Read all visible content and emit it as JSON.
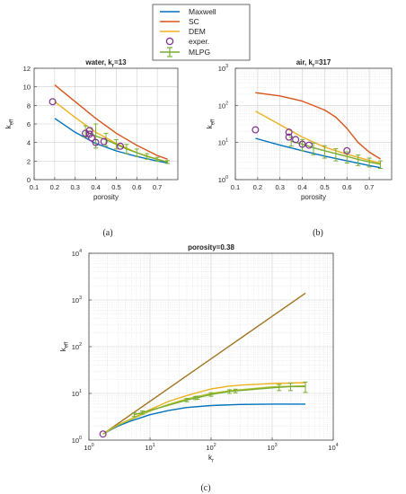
{
  "legend": {
    "entries": [
      {
        "name": "Maxwell",
        "color": "#0072BD",
        "kind": "line"
      },
      {
        "name": "SC",
        "color": "#D95319",
        "kind": "line"
      },
      {
        "name": "DEM",
        "color": "#EDB120",
        "kind": "line"
      },
      {
        "name": "exper.",
        "color": "#7E2F8E",
        "kind": "marker"
      },
      {
        "name": "MLPG",
        "color": "#77AC30",
        "kind": "errorbar"
      }
    ]
  },
  "captions": {
    "a": "(a)",
    "b": "(b)",
    "c": "(c)"
  },
  "chart_data": [
    {
      "id": "a",
      "type": "line",
      "title": "water,   k",
      "title_sub": "r",
      "title_after": "=13",
      "xlabel": "porosity",
      "ylabel": "k",
      "ylabel_sub": "eff",
      "xlim": [
        0.1,
        0.8
      ],
      "ylim": [
        0,
        12
      ],
      "yscale": "linear",
      "xticks": [
        0.1,
        0.2,
        0.3,
        0.4,
        0.5,
        0.6,
        0.7
      ],
      "xtick_labels": [
        "0.1",
        "0.2",
        "0.3",
        "0.4",
        "0.5",
        "0.6",
        "0.7"
      ],
      "yticks": [
        0,
        2,
        4,
        6,
        8,
        10,
        12
      ],
      "ytick_labels": [
        "0",
        "2",
        "4",
        "6",
        "8",
        "10",
        "12"
      ],
      "grid": true,
      "series": [
        {
          "name": "Maxwell",
          "color": "#0072BD",
          "x": [
            0.2,
            0.3,
            0.4,
            0.5,
            0.6,
            0.7,
            0.75
          ],
          "y": [
            6.6,
            5.1,
            3.9,
            3.1,
            2.5,
            2.0,
            1.8
          ]
        },
        {
          "name": "SC",
          "color": "#D95319",
          "x": [
            0.2,
            0.3,
            0.4,
            0.5,
            0.6,
            0.7,
            0.75
          ],
          "y": [
            10.2,
            8.4,
            6.6,
            5.0,
            3.7,
            2.6,
            2.2
          ]
        },
        {
          "name": "DEM",
          "color": "#EDB120",
          "x": [
            0.2,
            0.3,
            0.4,
            0.5,
            0.6,
            0.7,
            0.75
          ],
          "y": [
            8.4,
            6.7,
            5.1,
            3.9,
            2.9,
            2.2,
            1.9
          ]
        },
        {
          "name": "MLPG",
          "color": "#77AC30",
          "x": [
            0.35,
            0.4,
            0.45,
            0.5,
            0.55,
            0.6,
            0.65,
            0.7,
            0.75
          ],
          "y": [
            5.2,
            4.7,
            4.3,
            3.8,
            3.3,
            2.9,
            2.5,
            2.2,
            1.9
          ],
          "err": [
            0.6,
            1.3,
            0.7,
            0.5,
            0.5,
            0.4,
            0.3,
            0.2,
            0.15
          ]
        }
      ],
      "points": {
        "name": "exper.",
        "color": "#7E2F8E",
        "x": [
          0.19,
          0.35,
          0.37,
          0.37,
          0.38,
          0.4,
          0.44,
          0.52
        ],
        "y": [
          8.4,
          5.0,
          5.3,
          4.9,
          4.5,
          4.0,
          4.1,
          3.6
        ]
      }
    },
    {
      "id": "b",
      "type": "line",
      "title": "air,   k",
      "title_sub": "r",
      "title_after": "=317",
      "xlabel": "porosity",
      "ylabel": "k",
      "ylabel_sub": "eff",
      "xlim": [
        0.1,
        0.8
      ],
      "ylim": [
        1,
        1000
      ],
      "yscale": "log",
      "xticks": [
        0.1,
        0.2,
        0.3,
        0.4,
        0.5,
        0.6,
        0.7
      ],
      "xtick_labels": [
        "0.1",
        "0.2",
        "0.3",
        "0.4",
        "0.5",
        "0.6",
        "0.7"
      ],
      "yticks": [
        1,
        10,
        100,
        1000
      ],
      "ytick_labels": [
        "10",
        "10",
        "10",
        "10"
      ],
      "ytick_exps": [
        "0",
        "1",
        "2",
        "3"
      ],
      "grid": true,
      "series": [
        {
          "name": "Maxwell",
          "color": "#0072BD",
          "x": [
            0.19,
            0.3,
            0.4,
            0.5,
            0.6,
            0.7,
            0.75
          ],
          "y": [
            13,
            8.5,
            6.0,
            4.3,
            3.2,
            2.4,
            2.1
          ]
        },
        {
          "name": "SC",
          "color": "#D95319",
          "x": [
            0.19,
            0.3,
            0.4,
            0.5,
            0.55,
            0.6,
            0.65,
            0.7,
            0.75
          ],
          "y": [
            220,
            180,
            130,
            75,
            48,
            24,
            10,
            5.5,
            3.6
          ]
        },
        {
          "name": "DEM",
          "color": "#EDB120",
          "x": [
            0.19,
            0.3,
            0.4,
            0.5,
            0.6,
            0.7,
            0.75
          ],
          "y": [
            70,
            30,
            14,
            7.5,
            4.8,
            3.3,
            2.8
          ]
        },
        {
          "name": "MLPG",
          "color": "#77AC30",
          "x": [
            0.35,
            0.4,
            0.45,
            0.5,
            0.55,
            0.6,
            0.65,
            0.7,
            0.75
          ],
          "y": [
            11,
            9.0,
            7.2,
            6.0,
            5.0,
            4.2,
            3.5,
            3.0,
            2.6
          ],
          "err": [
            3.0,
            3.0,
            2.5,
            2.2,
            1.8,
            1.4,
            1.1,
            0.8,
            0.6
          ]
        }
      ],
      "points": {
        "name": "exper.",
        "color": "#7E2F8E",
        "x": [
          0.19,
          0.34,
          0.34,
          0.37,
          0.4,
          0.43,
          0.6
        ],
        "y": [
          22,
          19,
          14,
          12,
          9,
          8.5,
          6
        ]
      }
    },
    {
      "id": "c",
      "type": "line",
      "title": "porosity=0.38",
      "xlabel": "k",
      "xlabel_sub": "r",
      "ylabel": "k",
      "ylabel_sub": "eff",
      "xlim": [
        1,
        10000
      ],
      "ylim": [
        1,
        10000
      ],
      "xscale": "log",
      "yscale": "log",
      "xticks": [
        1,
        10,
        100,
        1000,
        10000
      ],
      "xtick_labels": [
        "10",
        "10",
        "10",
        "10",
        "10"
      ],
      "xtick_exps": [
        "0",
        "1",
        "2",
        "3",
        "4"
      ],
      "yticks": [
        1,
        10,
        100,
        1000,
        10000
      ],
      "ytick_labels": [
        "10",
        "10",
        "10",
        "10",
        "10"
      ],
      "ytick_exps": [
        "0",
        "1",
        "2",
        "3",
        "4"
      ],
      "grid": true,
      "series": [
        {
          "color": "#A2731E",
          "x": [
            1.7,
            3500
          ],
          "y": [
            1.35,
            1400
          ]
        },
        {
          "name": "Maxwell",
          "color": "#0072BD",
          "x": [
            1.7,
            3,
            5,
            7,
            10,
            20,
            40,
            100,
            300,
            1000,
            3500
          ],
          "y": [
            1.35,
            2.0,
            2.6,
            3.0,
            3.5,
            4.3,
            5.0,
            5.5,
            5.8,
            5.9,
            5.9
          ]
        },
        {
          "name": "DEM",
          "color": "#EDB120",
          "x": [
            1.7,
            3,
            5,
            7,
            10,
            20,
            40,
            100,
            200,
            300,
            1000,
            3500
          ],
          "y": [
            1.35,
            2.1,
            2.9,
            3.6,
            4.5,
            6.7,
            9.0,
            12.5,
            14.3,
            15.0,
            16.3,
            17
          ]
        },
        {
          "color": "#B5C22A",
          "x": [
            1.7,
            3,
            5,
            7,
            10,
            20,
            40,
            100,
            200,
            300,
            1000,
            3500
          ],
          "y": [
            1.35,
            2.1,
            2.8,
            3.4,
            4.2,
            5.8,
            7.6,
            10.0,
            11.3,
            12.0,
            13.8,
            14.5
          ]
        },
        {
          "name": "MLPG",
          "color": "#77AC30",
          "x": [
            5.5,
            7.5,
            40,
            55,
            60,
            100,
            200,
            250,
            1300,
            2000,
            3500
          ],
          "y": [
            3.5,
            3.9,
            7.2,
            8.0,
            8.1,
            9.5,
            11.0,
            11.3,
            13.5,
            14.0,
            14.0
          ],
          "err": [
            0.3,
            0.3,
            0.6,
            0.6,
            0.6,
            0.8,
            1.0,
            1.0,
            2.0,
            2.5,
            3.5
          ]
        }
      ],
      "points": {
        "name": "exper.",
        "color": "#7E2F8E",
        "x": [
          1.7
        ],
        "y": [
          1.35
        ]
      }
    }
  ]
}
